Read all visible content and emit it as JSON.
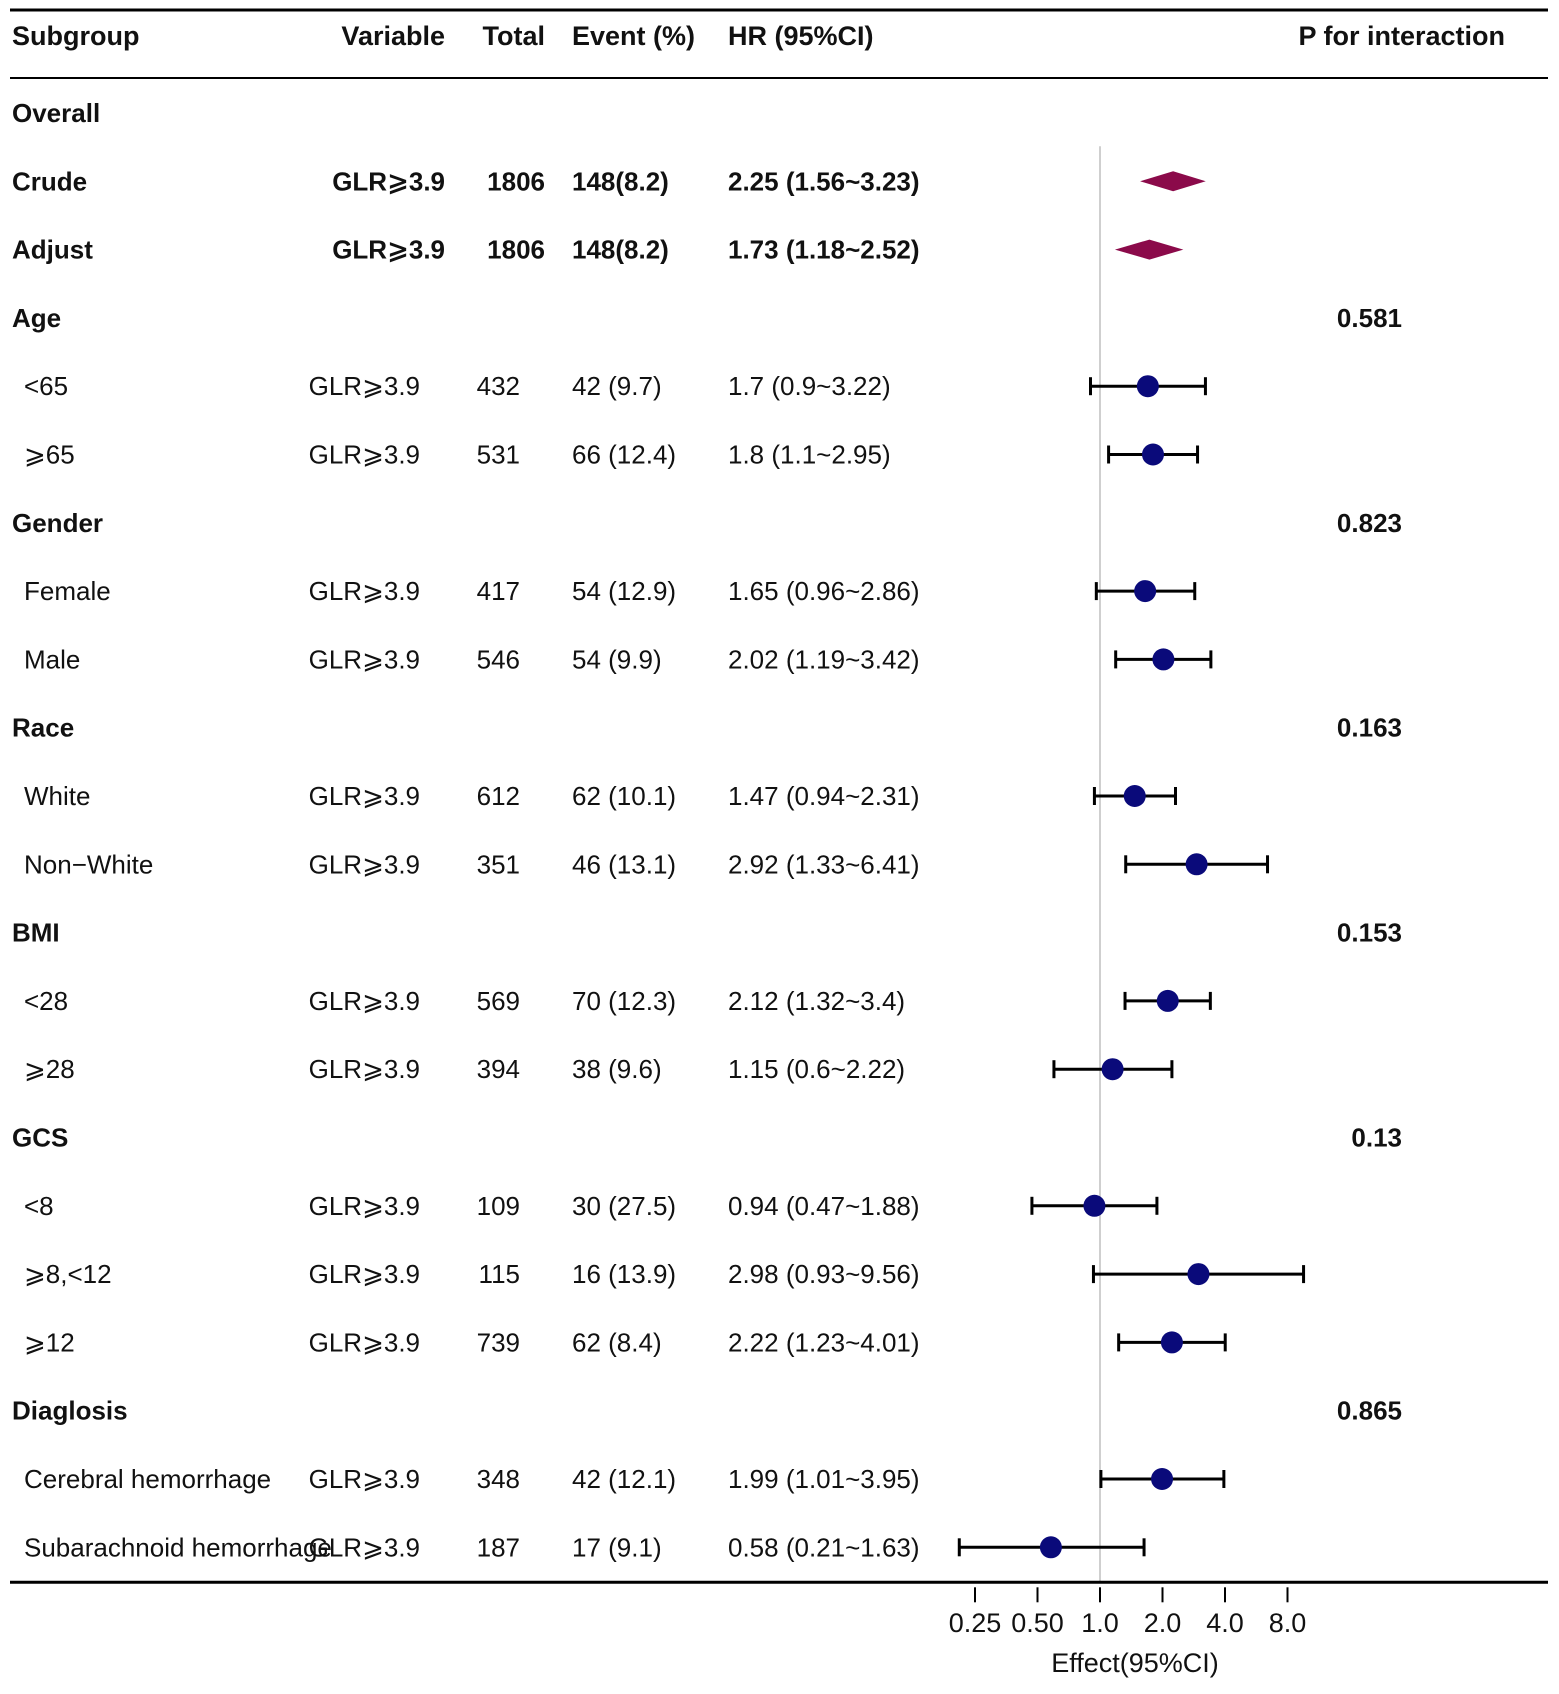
{
  "chart_data": {
    "type": "forest",
    "title": "",
    "xlabel": "Effect(95%CI)",
    "x_scale": "log2",
    "reference_line": 1.0,
    "x_ticks": [
      {
        "value": 0.25,
        "label": "0.25"
      },
      {
        "value": 0.5,
        "label": "0.50"
      },
      {
        "value": 1.0,
        "label": "1.0"
      },
      {
        "value": 2.0,
        "label": "2.0"
      },
      {
        "value": 4.0,
        "label": "4.0"
      },
      {
        "value": 8.0,
        "label": "8.0"
      }
    ],
    "columns": {
      "subgroup": "Subgroup",
      "variable": "Variable",
      "total": "Total",
      "event": "Event (%)",
      "hr": "HR (95%CI)",
      "p": "P for interaction"
    },
    "rows": [
      {
        "kind": "group",
        "subgroup": "Overall"
      },
      {
        "kind": "overall",
        "subgroup": "Crude",
        "variable": "GLR⩾3.9",
        "total": "1806",
        "event": "148(8.2)",
        "hr_text": "2.25 (1.56~3.23)",
        "hr": 2.25,
        "lower": 1.56,
        "upper": 3.23
      },
      {
        "kind": "overall",
        "subgroup": "Adjust",
        "variable": "GLR⩾3.9",
        "total": "1806",
        "event": "148(8.2)",
        "hr_text": "1.73 (1.18~2.52)",
        "hr": 1.73,
        "lower": 1.18,
        "upper": 2.52
      },
      {
        "kind": "group",
        "subgroup": "Age",
        "p": "0.581"
      },
      {
        "kind": "sub",
        "subgroup": "<65",
        "variable": "GLR⩾3.9",
        "total": "432",
        "event": "42 (9.7)",
        "hr_text": "1.7 (0.9~3.22)",
        "hr": 1.7,
        "lower": 0.9,
        "upper": 3.22
      },
      {
        "kind": "sub",
        "subgroup": "⩾65",
        "variable": "GLR⩾3.9",
        "total": "531",
        "event": "66 (12.4)",
        "hr_text": "1.8 (1.1~2.95)",
        "hr": 1.8,
        "lower": 1.1,
        "upper": 2.95
      },
      {
        "kind": "group",
        "subgroup": "Gender",
        "p": "0.823"
      },
      {
        "kind": "sub",
        "subgroup": "Female",
        "variable": "GLR⩾3.9",
        "total": "417",
        "event": "54 (12.9)",
        "hr_text": "1.65 (0.96~2.86)",
        "hr": 1.65,
        "lower": 0.96,
        "upper": 2.86
      },
      {
        "kind": "sub",
        "subgroup": "Male",
        "variable": "GLR⩾3.9",
        "total": "546",
        "event": "54 (9.9)",
        "hr_text": "2.02 (1.19~3.42)",
        "hr": 2.02,
        "lower": 1.19,
        "upper": 3.42
      },
      {
        "kind": "group",
        "subgroup": "Race",
        "p": "0.163"
      },
      {
        "kind": "sub",
        "subgroup": "White",
        "variable": "GLR⩾3.9",
        "total": "612",
        "event": "62 (10.1)",
        "hr_text": "1.47 (0.94~2.31)",
        "hr": 1.47,
        "lower": 0.94,
        "upper": 2.31
      },
      {
        "kind": "sub",
        "subgroup": "Non−White",
        "variable": "GLR⩾3.9",
        "total": "351",
        "event": "46 (13.1)",
        "hr_text": "2.92 (1.33~6.41)",
        "hr": 2.92,
        "lower": 1.33,
        "upper": 6.41
      },
      {
        "kind": "group",
        "subgroup": "BMI",
        "p": "0.153"
      },
      {
        "kind": "sub",
        "subgroup": "<28",
        "variable": "GLR⩾3.9",
        "total": "569",
        "event": "70 (12.3)",
        "hr_text": "2.12 (1.32~3.4)",
        "hr": 2.12,
        "lower": 1.32,
        "upper": 3.4
      },
      {
        "kind": "sub",
        "subgroup": "⩾28",
        "variable": "GLR⩾3.9",
        "total": "394",
        "event": "38 (9.6)",
        "hr_text": "1.15 (0.6~2.22)",
        "hr": 1.15,
        "lower": 0.6,
        "upper": 2.22
      },
      {
        "kind": "group",
        "subgroup": "GCS",
        "p": "0.13"
      },
      {
        "kind": "sub",
        "subgroup": "<8",
        "variable": "GLR⩾3.9",
        "total": "109",
        "event": "30 (27.5)",
        "hr_text": "0.94 (0.47~1.88)",
        "hr": 0.94,
        "lower": 0.47,
        "upper": 1.88
      },
      {
        "kind": "sub",
        "subgroup": "⩾8,<12",
        "variable": "GLR⩾3.9",
        "total": "115",
        "event": "16 (13.9)",
        "hr_text": "2.98 (0.93~9.56)",
        "hr": 2.98,
        "lower": 0.93,
        "upper": 9.56
      },
      {
        "kind": "sub",
        "subgroup": "⩾12",
        "variable": "GLR⩾3.9",
        "total": "739",
        "event": "62 (8.4)",
        "hr_text": "2.22 (1.23~4.01)",
        "hr": 2.22,
        "lower": 1.23,
        "upper": 4.01
      },
      {
        "kind": "group",
        "subgroup": "Diaglosis",
        "p": "0.865"
      },
      {
        "kind": "sub",
        "subgroup": "Cerebral hemorrhage",
        "variable": "GLR⩾3.9",
        "total": "348",
        "event": "42 (12.1)",
        "hr_text": "1.99 (1.01~3.95)",
        "hr": 1.99,
        "lower": 1.01,
        "upper": 3.95
      },
      {
        "kind": "sub",
        "subgroup": "Subarachnoid hemorrhage",
        "variable": "GLR⩾3.9",
        "total": "187",
        "event": "17 (9.1)",
        "hr_text": "0.58 (0.21~1.63)",
        "hr": 0.58,
        "lower": 0.21,
        "upper": 1.63
      }
    ],
    "colors": {
      "diamond": "#8b0a4a",
      "point": "#0a0a7a",
      "ci_line": "#000000",
      "ref_line": "#bfbfbf"
    }
  }
}
